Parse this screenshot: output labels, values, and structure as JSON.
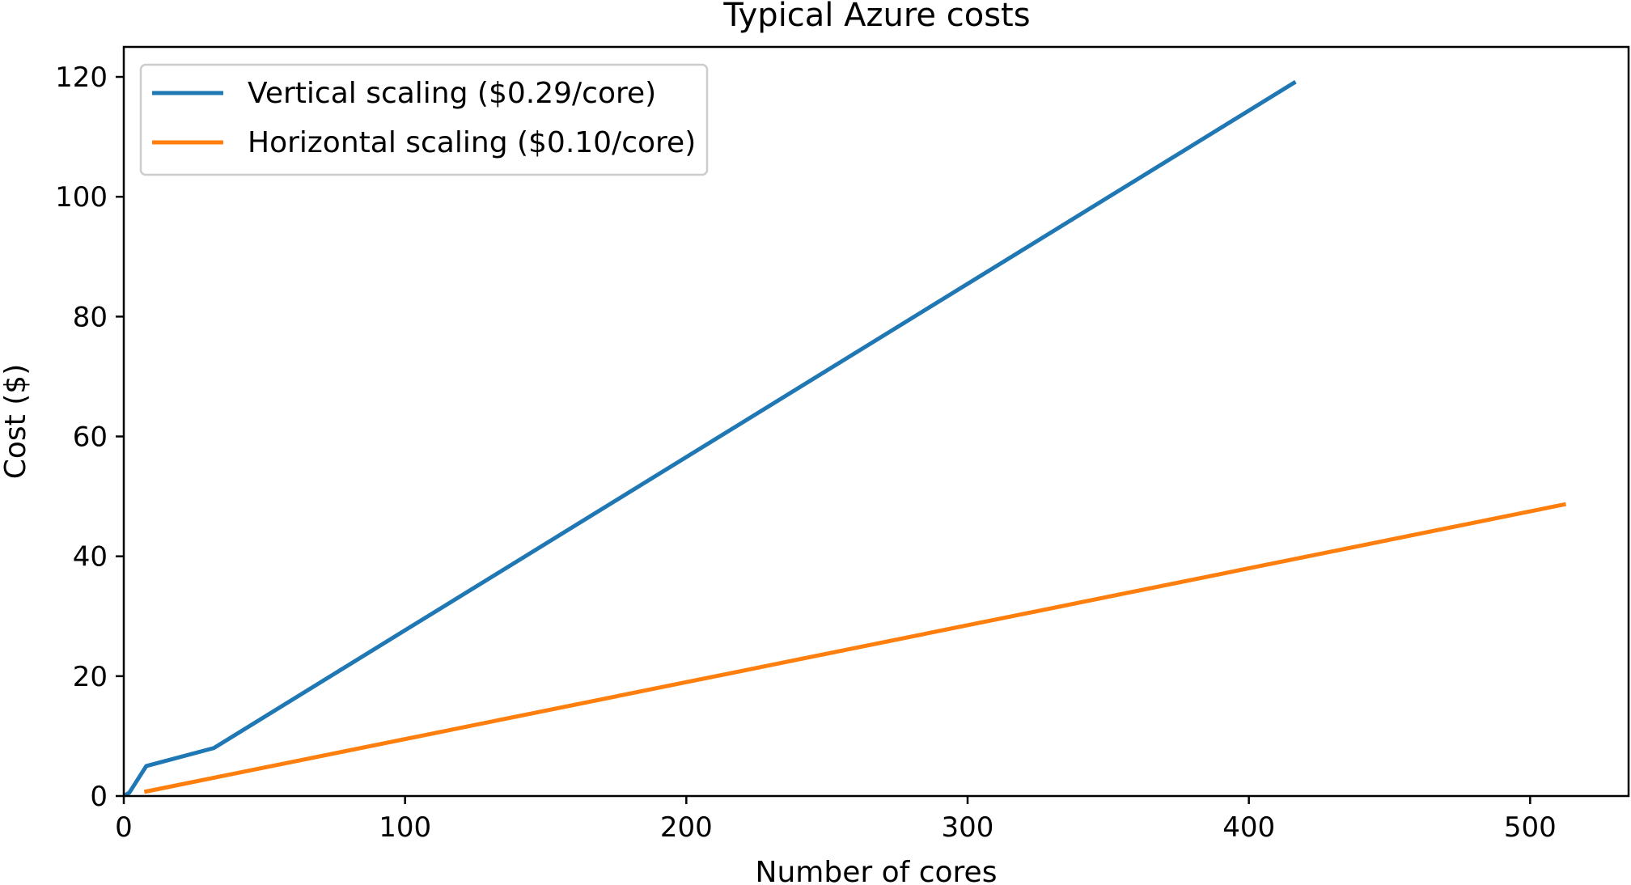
{
  "chart_data": {
    "type": "line",
    "title": "Typical Azure costs",
    "xlabel": "Number of cores",
    "ylabel": "Cost ($)",
    "xlim": [
      0,
      535
    ],
    "ylim": [
      0,
      125
    ],
    "xticks": [
      "0",
      "100",
      "200",
      "300",
      "400",
      "500"
    ],
    "yticks": [
      "0",
      "20",
      "40",
      "60",
      "80",
      "100",
      "120"
    ],
    "xtick_values": [
      0,
      100,
      200,
      300,
      400,
      500
    ],
    "ytick_values": [
      0,
      20,
      40,
      60,
      80,
      100,
      120
    ],
    "grid": false,
    "legend_placement": "top-left",
    "series": [
      {
        "name": "Vertical scaling ($0.29/core)",
        "color": "#1f77b4",
        "x": [
          1,
          2,
          8,
          32,
          416
        ],
        "y": [
          0.29,
          0.58,
          5.0,
          8.0,
          119.0
        ]
      },
      {
        "name": "Horizontal scaling ($0.10/core)",
        "color": "#ff7f0e",
        "x": [
          8,
          16,
          32,
          64,
          128,
          256,
          512
        ],
        "y": [
          0.76,
          1.52,
          3.04,
          6.08,
          12.16,
          24.32,
          48.64
        ]
      }
    ]
  }
}
